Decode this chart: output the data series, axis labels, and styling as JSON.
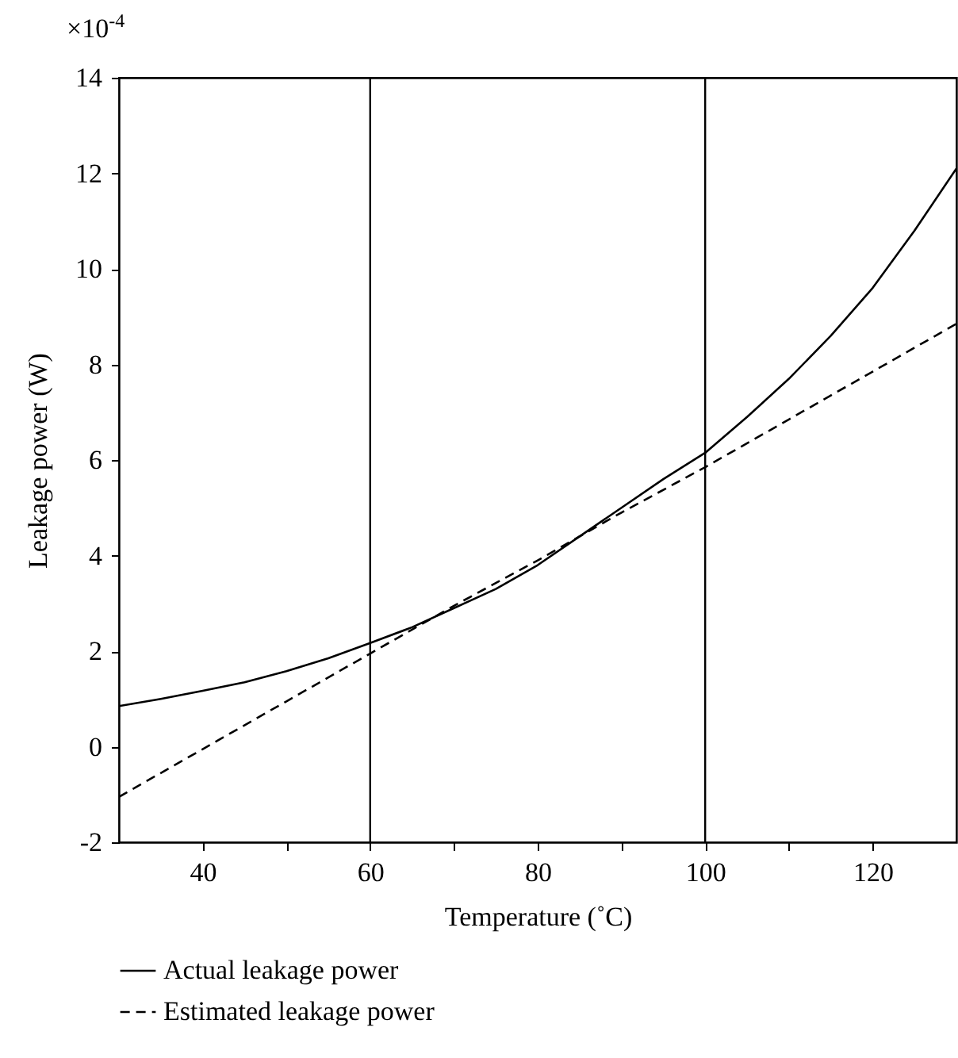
{
  "chart_data": {
    "type": "line",
    "xlabel": "Temperature (˚C)",
    "ylabel": "Leakage power (W)",
    "annotations": [
      "×10$^{-4}$"
    ],
    "xlim": [
      30,
      130
    ],
    "xticks": [
      40,
      {
        "value": 50,
        "label": null
      },
      60,
      {
        "value": 70,
        "label": null
      },
      80,
      {
        "value": 90,
        "label": null
      },
      100,
      {
        "value": 110,
        "label": null
      },
      120
    ],
    "ylim": [
      -2,
      14
    ],
    "yticks": [
      -2,
      0,
      2,
      4,
      6,
      8,
      10,
      12,
      14
    ],
    "grid": false,
    "legend": "bottom",
    "ref_lines": [
      {
        "axis": "x",
        "value": 60,
        "label": null,
        "color": "#000000"
      },
      {
        "axis": "x",
        "value": 100,
        "label": null,
        "color": "#000000"
      }
    ],
    "series": [
      {
        "name": "Actual leakage power",
        "color": "#000000",
        "line_style": "solid",
        "x": [
          30,
          35,
          40,
          45,
          50,
          55,
          60,
          65,
          70,
          75,
          80,
          85,
          90,
          95,
          100,
          105,
          110,
          115,
          120,
          125,
          130
        ],
        "values": [
          0.85,
          1.0,
          1.17,
          1.35,
          1.58,
          1.85,
          2.17,
          2.5,
          2.9,
          3.3,
          3.8,
          4.4,
          5.0,
          5.6,
          6.15,
          6.9,
          7.7,
          8.6,
          9.6,
          10.8,
          12.1
        ]
      },
      {
        "name": "Estimated leakage power",
        "color": "#000000",
        "line_style": "dashed",
        "x": [
          30,
          40,
          50,
          60,
          70,
          80,
          90,
          100,
          110,
          120,
          130
        ],
        "values": [
          -1.05,
          -0.05,
          0.95,
          1.95,
          2.95,
          3.9,
          4.9,
          5.85,
          6.85,
          7.85,
          8.85
        ]
      }
    ]
  }
}
